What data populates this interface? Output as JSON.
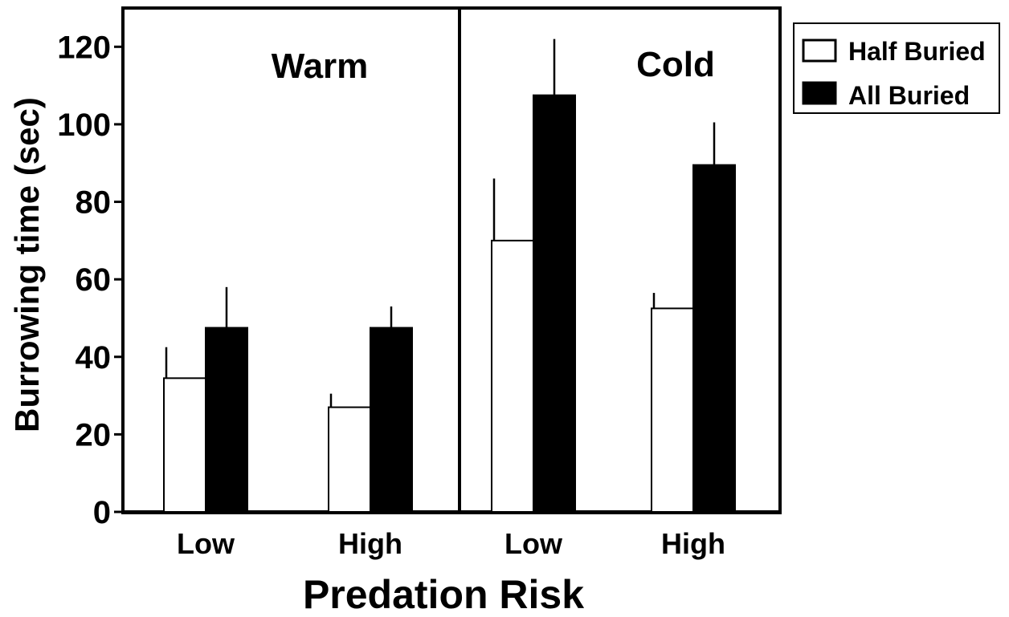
{
  "chart_data": {
    "type": "bar",
    "ylabel": "Burrowing time (sec)",
    "xlabel": "Predation Risk",
    "ylim": [
      0,
      130
    ],
    "yticks": [
      0,
      20,
      40,
      60,
      80,
      100,
      120
    ],
    "grid": false,
    "legend_position": "top-right (outside)",
    "panels": [
      {
        "title": "Warm",
        "categories": [
          "Low",
          "High"
        ],
        "series": [
          {
            "name": "Half Buried",
            "values": [
              34.5,
              27
            ],
            "errors": [
              8,
              3.5
            ]
          },
          {
            "name": "All Buried",
            "values": [
              47.5,
              47.5
            ],
            "errors": [
              10.5,
              5.5
            ]
          }
        ]
      },
      {
        "title": "Cold",
        "categories": [
          "Low",
          "High"
        ],
        "series": [
          {
            "name": "Half Buried",
            "values": [
              70,
              52.5
            ],
            "errors": [
              16,
              4
            ]
          },
          {
            "name": "All Buried",
            "values": [
              107.5,
              89.5
            ],
            "errors": [
              14.5,
              11
            ]
          }
        ]
      }
    ]
  },
  "legend": {
    "items": [
      {
        "label": "Half Buried",
        "fill": "#ffffff"
      },
      {
        "label": "All Buried",
        "fill": "#000000"
      }
    ]
  },
  "colors": {
    "half_buried": "#ffffff",
    "all_buried": "#000000",
    "stroke": "#000000"
  }
}
